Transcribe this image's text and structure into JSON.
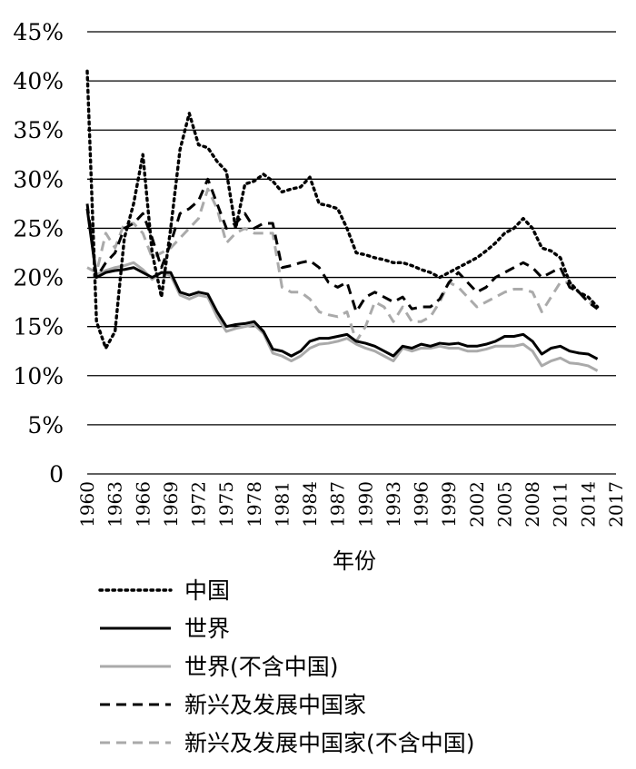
{
  "chart_data": {
    "type": "line",
    "title": "",
    "xlabel": "年份",
    "ylabel": "",
    "ylim": [
      0,
      45
    ],
    "xlim": [
      1960,
      2017
    ],
    "grid": true,
    "legend_position": "bottom",
    "y_ticks": [
      "0",
      "5%",
      "10%",
      "15%",
      "20%",
      "25%",
      "30%",
      "35%",
      "40%",
      "45%"
    ],
    "x_ticks": [
      "1960",
      "1963",
      "1966",
      "1969",
      "1972",
      "1975",
      "1978",
      "1981",
      "1984",
      "1987",
      "1990",
      "1993",
      "1996",
      "1999",
      "2002",
      "2005",
      "2008",
      "2011",
      "2014",
      "2017"
    ],
    "series": [
      {
        "name": "中国",
        "style": "dotted",
        "color": "#000000",
        "values": [
          [
            1960,
            41.0
          ],
          [
            1961,
            15.5
          ],
          [
            1962,
            12.8
          ],
          [
            1963,
            14.5
          ],
          [
            1964,
            24.0
          ],
          [
            1965,
            27.5
          ],
          [
            1966,
            32.5
          ],
          [
            1967,
            22.5
          ],
          [
            1968,
            18.0
          ],
          [
            1969,
            25.0
          ],
          [
            1970,
            33.0
          ],
          [
            1971,
            36.7
          ],
          [
            1972,
            33.5
          ],
          [
            1973,
            33.2
          ],
          [
            1974,
            31.8
          ],
          [
            1975,
            30.8
          ],
          [
            1976,
            25.0
          ],
          [
            1977,
            29.5
          ],
          [
            1978,
            29.8
          ],
          [
            1979,
            30.5
          ],
          [
            1980,
            29.8
          ],
          [
            1981,
            28.7
          ],
          [
            1982,
            29.0
          ],
          [
            1983,
            29.2
          ],
          [
            1984,
            30.2
          ],
          [
            1985,
            27.5
          ],
          [
            1986,
            27.3
          ],
          [
            1987,
            27.0
          ],
          [
            1988,
            25.0
          ],
          [
            1989,
            22.5
          ],
          [
            1990,
            22.3
          ],
          [
            1991,
            22.0
          ],
          [
            1992,
            21.8
          ],
          [
            1993,
            21.5
          ],
          [
            1994,
            21.5
          ],
          [
            1995,
            21.2
          ],
          [
            1996,
            20.8
          ],
          [
            1997,
            20.5
          ],
          [
            1998,
            20.0
          ],
          [
            1999,
            20.5
          ],
          [
            2000,
            21.0
          ],
          [
            2001,
            21.5
          ],
          [
            2002,
            22.0
          ],
          [
            2003,
            22.7
          ],
          [
            2004,
            23.5
          ],
          [
            2005,
            24.5
          ],
          [
            2006,
            25.0
          ],
          [
            2007,
            26.0
          ],
          [
            2008,
            25.0
          ],
          [
            2009,
            23.0
          ],
          [
            2010,
            22.7
          ],
          [
            2011,
            22.0
          ],
          [
            2012,
            19.5
          ],
          [
            2013,
            18.5
          ],
          [
            2014,
            18.0
          ],
          [
            2015,
            17.0
          ]
        ]
      },
      {
        "name": "世界",
        "style": "solid",
        "color": "#000000",
        "values": [
          [
            1960,
            27.0
          ],
          [
            1961,
            20.0
          ],
          [
            1962,
            20.5
          ],
          [
            1963,
            20.7
          ],
          [
            1964,
            20.8
          ],
          [
            1965,
            21.0
          ],
          [
            1966,
            20.5
          ],
          [
            1967,
            20.0
          ],
          [
            1968,
            20.5
          ],
          [
            1969,
            20.5
          ],
          [
            1970,
            18.5
          ],
          [
            1971,
            18.2
          ],
          [
            1972,
            18.5
          ],
          [
            1973,
            18.3
          ],
          [
            1974,
            16.5
          ],
          [
            1975,
            15.0
          ],
          [
            1976,
            15.2
          ],
          [
            1977,
            15.3
          ],
          [
            1978,
            15.5
          ],
          [
            1979,
            14.5
          ],
          [
            1980,
            12.7
          ],
          [
            1981,
            12.5
          ],
          [
            1982,
            12.0
          ],
          [
            1983,
            12.5
          ],
          [
            1984,
            13.5
          ],
          [
            1985,
            13.8
          ],
          [
            1986,
            13.8
          ],
          [
            1987,
            14.0
          ],
          [
            1988,
            14.2
          ],
          [
            1989,
            13.5
          ],
          [
            1990,
            13.3
          ],
          [
            1991,
            13.0
          ],
          [
            1992,
            12.5
          ],
          [
            1993,
            12.0
          ],
          [
            1994,
            13.0
          ],
          [
            1995,
            12.8
          ],
          [
            1996,
            13.2
          ],
          [
            1997,
            13.0
          ],
          [
            1998,
            13.3
          ],
          [
            1999,
            13.2
          ],
          [
            2000,
            13.3
          ],
          [
            2001,
            13.0
          ],
          [
            2002,
            13.0
          ],
          [
            2003,
            13.2
          ],
          [
            2004,
            13.5
          ],
          [
            2005,
            14.0
          ],
          [
            2006,
            14.0
          ],
          [
            2007,
            14.2
          ],
          [
            2008,
            13.5
          ],
          [
            2009,
            12.2
          ],
          [
            2010,
            12.8
          ],
          [
            2011,
            13.0
          ],
          [
            2012,
            12.5
          ],
          [
            2013,
            12.3
          ],
          [
            2014,
            12.2
          ],
          [
            2015,
            11.7
          ]
        ]
      },
      {
        "name": "世界(不含中国)",
        "style": "solid",
        "color": "#aaaaaa",
        "values": [
          [
            1960,
            27.0
          ],
          [
            1961,
            20.3
          ],
          [
            1962,
            20.7
          ],
          [
            1963,
            21.0
          ],
          [
            1964,
            21.2
          ],
          [
            1965,
            21.5
          ],
          [
            1966,
            20.8
          ],
          [
            1967,
            19.8
          ],
          [
            1968,
            20.5
          ],
          [
            1969,
            20.2
          ],
          [
            1970,
            18.2
          ],
          [
            1971,
            17.8
          ],
          [
            1972,
            18.2
          ],
          [
            1973,
            18.0
          ],
          [
            1974,
            16.0
          ],
          [
            1975,
            14.5
          ],
          [
            1976,
            14.8
          ],
          [
            1977,
            15.0
          ],
          [
            1978,
            15.2
          ],
          [
            1979,
            14.3
          ],
          [
            1980,
            12.3
          ],
          [
            1981,
            12.0
          ],
          [
            1982,
            11.5
          ],
          [
            1983,
            12.0
          ],
          [
            1984,
            12.8
          ],
          [
            1985,
            13.2
          ],
          [
            1986,
            13.3
          ],
          [
            1987,
            13.5
          ],
          [
            1988,
            13.8
          ],
          [
            1989,
            13.2
          ],
          [
            1990,
            12.8
          ],
          [
            1991,
            12.5
          ],
          [
            1992,
            12.0
          ],
          [
            1993,
            11.5
          ],
          [
            1994,
            12.8
          ],
          [
            1995,
            12.5
          ],
          [
            1996,
            12.8
          ],
          [
            1997,
            12.8
          ],
          [
            1998,
            13.0
          ],
          [
            1999,
            12.8
          ],
          [
            2000,
            12.8
          ],
          [
            2001,
            12.5
          ],
          [
            2002,
            12.5
          ],
          [
            2003,
            12.7
          ],
          [
            2004,
            13.0
          ],
          [
            2005,
            13.0
          ],
          [
            2006,
            13.0
          ],
          [
            2007,
            13.2
          ],
          [
            2008,
            12.5
          ],
          [
            2009,
            11.0
          ],
          [
            2010,
            11.5
          ],
          [
            2011,
            11.8
          ],
          [
            2012,
            11.3
          ],
          [
            2013,
            11.2
          ],
          [
            2014,
            11.0
          ],
          [
            2015,
            10.5
          ]
        ]
      },
      {
        "name": "新兴及发展中国家",
        "style": "dashed",
        "color": "#000000",
        "values": [
          [
            1960,
            27.5
          ],
          [
            1961,
            20.0
          ],
          [
            1962,
            21.5
          ],
          [
            1963,
            22.5
          ],
          [
            1964,
            25.0
          ],
          [
            1965,
            25.5
          ],
          [
            1966,
            26.5
          ],
          [
            1967,
            24.0
          ],
          [
            1968,
            21.0
          ],
          [
            1969,
            23.5
          ],
          [
            1970,
            26.5
          ],
          [
            1971,
            27.0
          ],
          [
            1972,
            27.8
          ],
          [
            1973,
            30.0
          ],
          [
            1974,
            27.5
          ],
          [
            1975,
            25.0
          ],
          [
            1976,
            25.5
          ],
          [
            1977,
            26.5
          ],
          [
            1978,
            25.0
          ],
          [
            1979,
            25.5
          ],
          [
            1980,
            25.5
          ],
          [
            1981,
            21.0
          ],
          [
            1982,
            21.2
          ],
          [
            1983,
            21.5
          ],
          [
            1984,
            21.7
          ],
          [
            1985,
            21.0
          ],
          [
            1986,
            19.5
          ],
          [
            1987,
            19.0
          ],
          [
            1988,
            19.5
          ],
          [
            1989,
            16.5
          ],
          [
            1990,
            18.0
          ],
          [
            1991,
            18.5
          ],
          [
            1992,
            18.0
          ],
          [
            1993,
            17.5
          ],
          [
            1994,
            18.0
          ],
          [
            1995,
            16.8
          ],
          [
            1996,
            17.0
          ],
          [
            1997,
            17.0
          ],
          [
            1998,
            17.8
          ],
          [
            1999,
            19.5
          ],
          [
            2000,
            20.5
          ],
          [
            2001,
            19.5
          ],
          [
            2002,
            18.5
          ],
          [
            2003,
            19.0
          ],
          [
            2004,
            20.0
          ],
          [
            2005,
            20.5
          ],
          [
            2006,
            21.0
          ],
          [
            2007,
            21.5
          ],
          [
            2008,
            21.0
          ],
          [
            2009,
            20.0
          ],
          [
            2010,
            20.5
          ],
          [
            2011,
            21.0
          ],
          [
            2012,
            19.0
          ],
          [
            2013,
            18.5
          ],
          [
            2014,
            17.5
          ],
          [
            2015,
            16.8
          ]
        ]
      },
      {
        "name": "新兴及发展中国家(不含中国)",
        "style": "dashed",
        "color": "#aaaaaa",
        "values": [
          [
            1960,
            21.0
          ],
          [
            1961,
            20.5
          ],
          [
            1962,
            24.5
          ],
          [
            1963,
            23.0
          ],
          [
            1964,
            25.5
          ],
          [
            1965,
            25.5
          ],
          [
            1966,
            24.5
          ],
          [
            1967,
            22.0
          ],
          [
            1968,
            22.5
          ],
          [
            1969,
            23.0
          ],
          [
            1970,
            24.0
          ],
          [
            1971,
            25.0
          ],
          [
            1972,
            26.0
          ],
          [
            1973,
            29.0
          ],
          [
            1974,
            27.0
          ],
          [
            1975,
            23.5
          ],
          [
            1976,
            24.5
          ],
          [
            1977,
            25.0
          ],
          [
            1978,
            24.5
          ],
          [
            1979,
            24.5
          ],
          [
            1980,
            24.5
          ],
          [
            1981,
            19.0
          ],
          [
            1982,
            18.5
          ],
          [
            1983,
            18.5
          ],
          [
            1984,
            17.8
          ],
          [
            1985,
            16.5
          ],
          [
            1986,
            16.2
          ],
          [
            1987,
            16.0
          ],
          [
            1988,
            16.5
          ],
          [
            1989,
            13.5
          ],
          [
            1990,
            15.0
          ],
          [
            1991,
            17.5
          ],
          [
            1992,
            17.0
          ],
          [
            1993,
            15.5
          ],
          [
            1994,
            17.0
          ],
          [
            1995,
            15.5
          ],
          [
            1996,
            15.5
          ],
          [
            1997,
            16.0
          ],
          [
            1998,
            17.5
          ],
          [
            1999,
            19.5
          ],
          [
            2000,
            19.0
          ],
          [
            2001,
            18.0
          ],
          [
            2002,
            17.0
          ],
          [
            2003,
            17.5
          ],
          [
            2004,
            18.0
          ],
          [
            2005,
            18.5
          ],
          [
            2006,
            18.8
          ],
          [
            2007,
            18.8
          ],
          [
            2008,
            18.5
          ],
          [
            2009,
            16.5
          ],
          [
            2010,
            18.0
          ],
          [
            2011,
            19.5
          ],
          [
            2012,
            19.5
          ],
          [
            2013,
            18.5
          ],
          [
            2014,
            17.5
          ],
          [
            2015,
            17.0
          ]
        ]
      }
    ]
  }
}
